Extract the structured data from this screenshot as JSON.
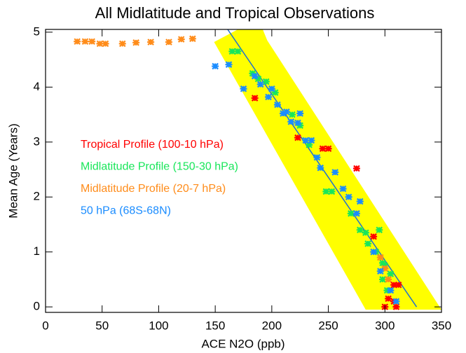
{
  "chart_data": {
    "type": "scatter",
    "title": "All Midlatitude and Tropical Observations",
    "x_label": "ACE N2O (ppb)",
    "y_label": "Mean Age (Years)",
    "xlim": [
      0,
      350
    ],
    "ylim": [
      -0.1,
      5.05
    ],
    "xticks": [
      0,
      50,
      100,
      150,
      200,
      250,
      300,
      350
    ],
    "yticks": [
      0,
      1,
      2,
      3,
      4,
      5
    ],
    "shaded_region": {
      "color": "#ffff00",
      "x": [
        149,
        170,
        192,
        196,
        350,
        283
      ],
      "y": [
        4.82,
        5.05,
        5.05,
        4.85,
        -0.05,
        -0.05
      ]
    },
    "fit_line": {
      "color": "#1f6fd0",
      "x": [
        161,
        328
      ],
      "y": [
        5.05,
        0
      ]
    },
    "series": [
      {
        "name": "Tropical Profile (100-10 hPa)",
        "color": "#ff0000",
        "x": [
          185,
          223,
          245,
          250,
          275,
          290,
          308,
          312,
          308,
          310,
          300,
          303
        ],
        "y": [
          3.8,
          3.08,
          2.88,
          2.88,
          2.52,
          1.28,
          0.4,
          0.4,
          0.1,
          0.0,
          0.0,
          0.15
        ]
      },
      {
        "name": "Midlatitude Profile (150-30 hPa)",
        "color": "#19e65a",
        "x": [
          165,
          170,
          183,
          188,
          195,
          203,
          218,
          225,
          233,
          248,
          253,
          270,
          278,
          283,
          285,
          292,
          295,
          298,
          300,
          305,
          302,
          298
        ],
        "y": [
          4.65,
          4.65,
          4.25,
          4.15,
          4.1,
          3.9,
          3.5,
          3.3,
          2.95,
          2.1,
          2.1,
          1.7,
          1.4,
          1.35,
          1.15,
          1.0,
          1.4,
          0.8,
          0.75,
          0.6,
          0.3,
          0.5
        ]
      },
      {
        "name": "Midlatitude Profile (20-7 hPa)",
        "color": "#ff8c1a",
        "x": [
          28,
          35,
          41,
          48,
          53,
          68,
          80,
          93,
          109,
          120,
          130,
          296,
          300,
          303
        ],
        "y": [
          4.83,
          4.83,
          4.83,
          4.79,
          4.79,
          4.79,
          4.81,
          4.82,
          4.82,
          4.87,
          4.88,
          0.9,
          0.7,
          0.5
        ]
      },
      {
        "name": "50 hPa (68S-68N)",
        "color": "#1a8cff",
        "x": [
          150,
          162,
          175,
          185,
          190,
          197,
          200,
          205,
          210,
          213,
          217,
          223,
          225,
          230,
          235,
          240,
          243,
          256,
          263,
          268,
          278,
          275,
          290,
          296,
          305,
          310
        ],
        "y": [
          4.38,
          4.41,
          3.97,
          4.2,
          4.05,
          3.82,
          3.97,
          3.68,
          3.52,
          3.55,
          3.37,
          3.35,
          3.52,
          3.03,
          3.03,
          2.72,
          2.53,
          2.45,
          2.15,
          2.0,
          1.92,
          1.7,
          1.0,
          0.65,
          0.3,
          0.1
        ]
      }
    ]
  }
}
